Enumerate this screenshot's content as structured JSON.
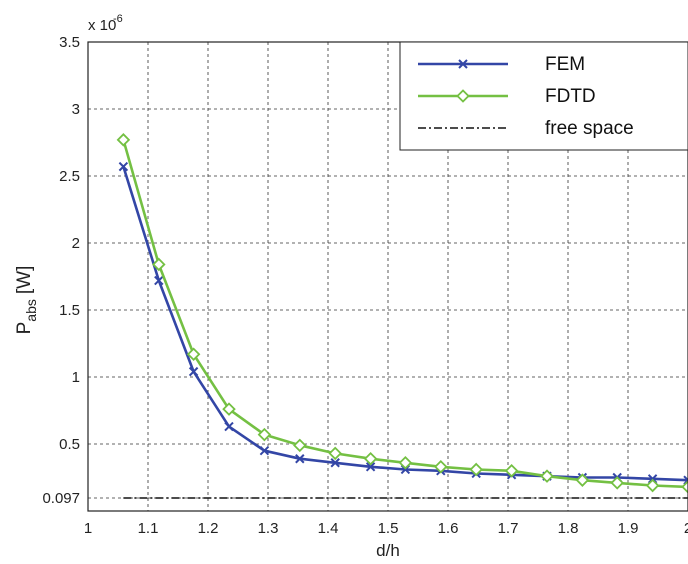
{
  "chart_data": {
    "type": "line",
    "xlabel": "d/h",
    "ylabel_main": "P",
    "ylabel_sub": "abs",
    "ylabel_unit": "[W]",
    "exponent_label": "x 10",
    "exponent_power": "-6",
    "xlim": [
      1,
      2
    ],
    "ylim": [
      0,
      3.5
    ],
    "grid": true,
    "legend_position": "top-right",
    "x_ticks": [
      1,
      1.1,
      1.2,
      1.3,
      1.4,
      1.5,
      1.6,
      1.7,
      1.8,
      1.9,
      2
    ],
    "x_tick_labels": [
      "1",
      "1.1",
      "1.2",
      "1.3",
      "1.4",
      "1.5",
      "1.6",
      "1.7",
      "1.8",
      "1.9",
      "2"
    ],
    "y_ticks": [
      0.097,
      0.5,
      1,
      1.5,
      2,
      2.5,
      3,
      3.5
    ],
    "y_tick_labels": [
      "0.097",
      "0.5",
      "1",
      "1.5",
      "2",
      "2.5",
      "3",
      "3.5"
    ],
    "series": [
      {
        "name": "FEM",
        "color": "#3346a6",
        "marker": "x",
        "x": [
          1.059,
          1.118,
          1.176,
          1.235,
          1.294,
          1.353,
          1.412,
          1.471,
          1.529,
          1.588,
          1.647,
          1.706,
          1.765,
          1.824,
          1.882,
          1.941,
          2.0
        ],
        "y": [
          2.57,
          1.72,
          1.04,
          0.63,
          0.45,
          0.39,
          0.36,
          0.33,
          0.31,
          0.3,
          0.28,
          0.27,
          0.26,
          0.25,
          0.25,
          0.24,
          0.23
        ]
      },
      {
        "name": "FDTD",
        "color": "#74c043",
        "marker": "diamond",
        "x": [
          1.059,
          1.118,
          1.176,
          1.235,
          1.294,
          1.353,
          1.412,
          1.471,
          1.529,
          1.588,
          1.647,
          1.706,
          1.765,
          1.824,
          1.882,
          1.941,
          2.0
        ],
        "y": [
          2.77,
          1.84,
          1.17,
          0.76,
          0.57,
          0.49,
          0.43,
          0.39,
          0.36,
          0.33,
          0.31,
          0.3,
          0.26,
          0.23,
          0.21,
          0.19,
          0.18
        ]
      },
      {
        "name": "free space",
        "color": "#111111",
        "marker": "none",
        "linestyle": "dashdot",
        "x": [
          1.059,
          2.0
        ],
        "y": [
          0.097,
          0.097
        ]
      }
    ]
  }
}
